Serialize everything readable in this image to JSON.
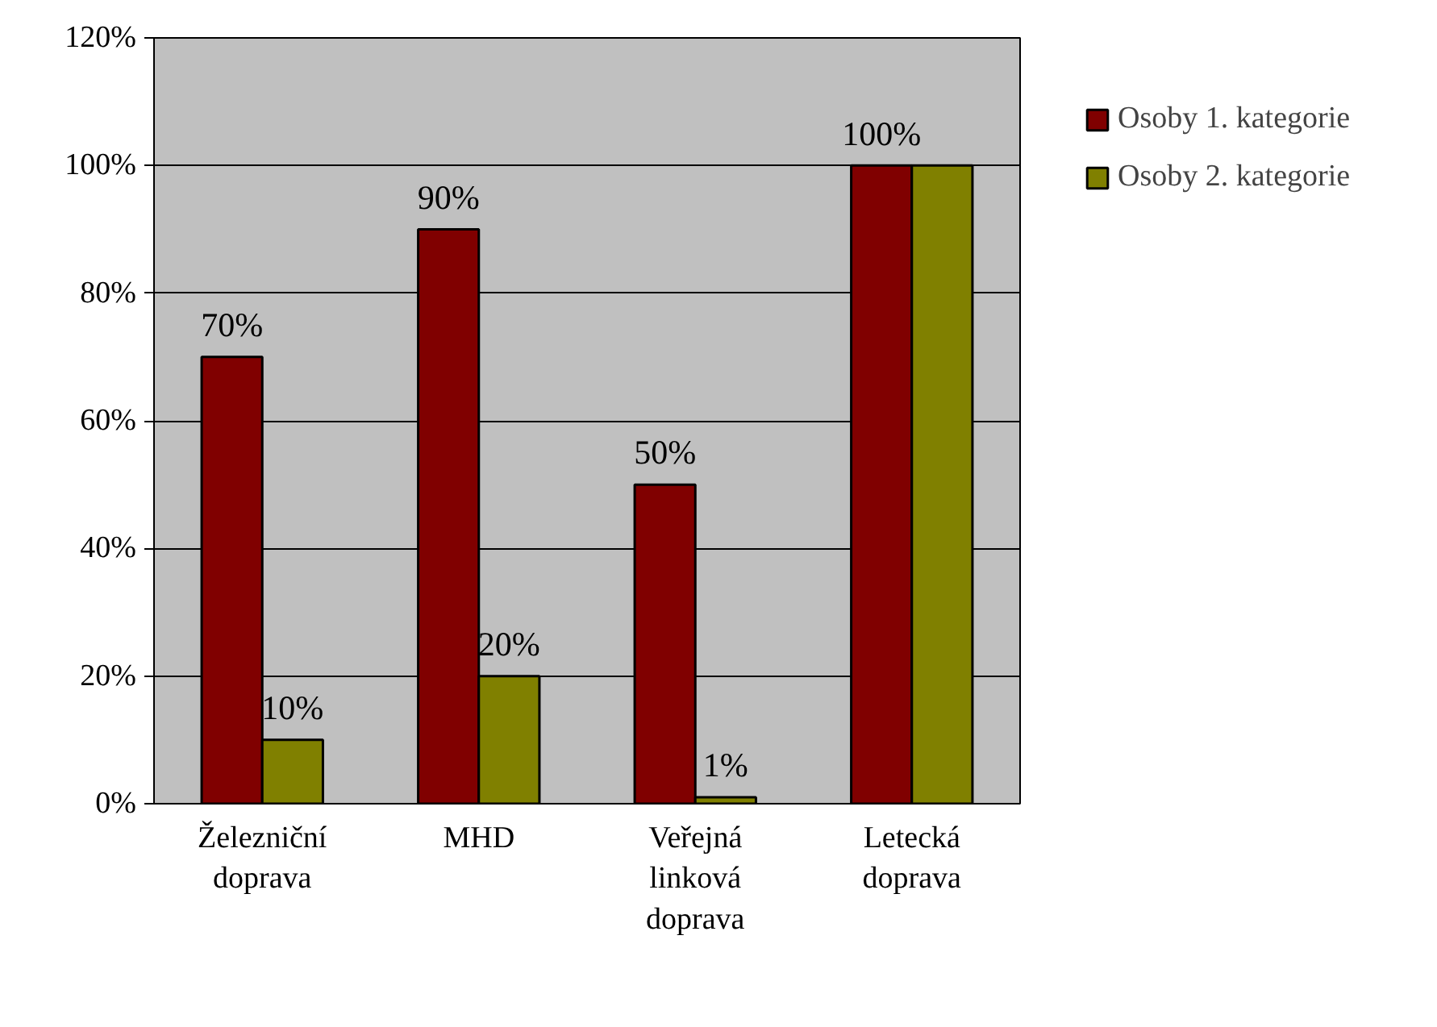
{
  "chart_data": {
    "type": "bar",
    "categories": [
      "Železniční\ndoprava",
      "MHD",
      "Veřejná\nlinková\ndoprava",
      "Letecká\ndoprava"
    ],
    "series": [
      {
        "name": "Osoby 1. kategorie",
        "color": "#800000",
        "values": [
          70,
          90,
          50,
          100
        ],
        "value_labels": [
          "70%",
          "90%",
          "50%",
          "100%"
        ]
      },
      {
        "name": "Osoby 2. kategorie",
        "color": "#808000",
        "values": [
          10,
          20,
          1,
          100
        ],
        "value_labels": [
          "10%",
          "20%",
          "1%",
          null
        ]
      }
    ],
    "ylim": [
      0,
      120
    ],
    "yticks": [
      {
        "value": 0,
        "label": "0%"
      },
      {
        "value": 20,
        "label": "20%"
      },
      {
        "value": 40,
        "label": "40%"
      },
      {
        "value": 60,
        "label": "60%"
      },
      {
        "value": 80,
        "label": "80%"
      },
      {
        "value": 100,
        "label": "100%"
      },
      {
        "value": 120,
        "label": "120%"
      }
    ],
    "grid": "y",
    "legend": "right"
  }
}
